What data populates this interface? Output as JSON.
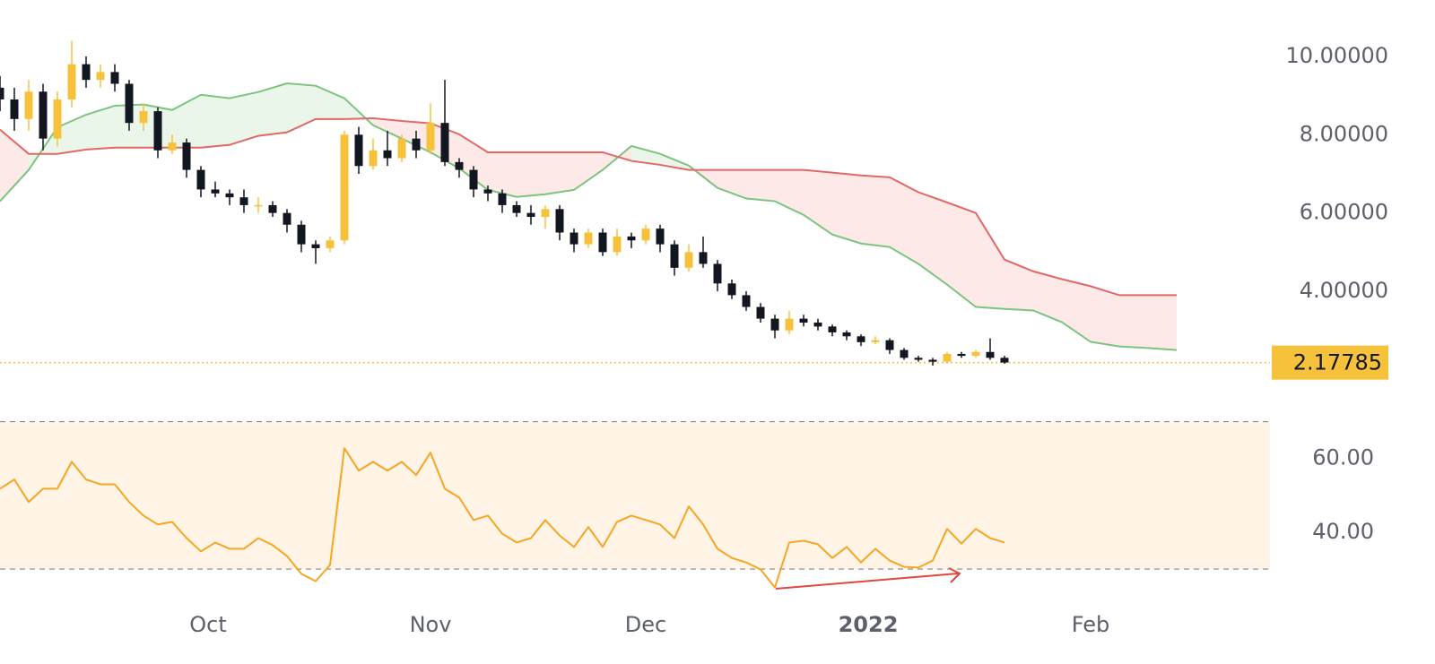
{
  "chart_data": [
    {
      "type": "candlestick",
      "x": [
        0,
        2,
        4,
        6,
        8,
        10,
        12,
        14,
        16,
        18,
        20,
        22,
        24,
        26,
        28,
        30,
        32,
        34,
        36,
        38,
        40,
        42,
        44,
        46,
        48,
        50,
        52,
        54,
        56,
        58,
        60,
        62,
        64,
        66,
        68,
        70,
        72,
        74,
        76,
        78,
        80,
        82,
        84,
        86,
        88,
        90,
        92,
        94,
        96,
        98,
        100,
        102,
        104,
        106,
        108,
        110,
        112,
        114,
        116,
        118,
        120,
        122,
        124,
        126,
        128,
        130,
        132,
        134,
        136,
        138,
        140
      ],
      "open": [
        9.2,
        8.9,
        8.4,
        9.1,
        7.9,
        8.9,
        9.8,
        9.4,
        9.6,
        9.3,
        8.3,
        8.6,
        7.6,
        7.8,
        7.1,
        6.6,
        6.5,
        6.4,
        6.2,
        6.2,
        6.0,
        5.7,
        5.2,
        5.1,
        5.3,
        8.0,
        7.2,
        7.6,
        7.4,
        7.9,
        7.6,
        8.3,
        7.3,
        7.1,
        6.6,
        6.5,
        6.2,
        6.0,
        5.9,
        6.1,
        5.5,
        5.2,
        5.5,
        5.0,
        5.4,
        5.3,
        5.6,
        5.2,
        4.6,
        5.0,
        4.7,
        4.2,
        3.9,
        3.6,
        3.3,
        3.0,
        3.3,
        3.2,
        3.1,
        2.95,
        2.85,
        2.7,
        2.75,
        2.5,
        2.3,
        2.25,
        2.2,
        2.4,
        2.35,
        2.45,
        2.3
      ],
      "high": [
        9.5,
        9.2,
        9.4,
        9.3,
        9.1,
        10.4,
        10.0,
        9.8,
        9.8,
        9.4,
        8.8,
        8.7,
        8.0,
        7.9,
        7.2,
        6.8,
        6.6,
        6.6,
        6.4,
        6.3,
        6.1,
        5.8,
        5.3,
        5.4,
        8.1,
        8.2,
        7.9,
        8.1,
        8.0,
        8.1,
        8.8,
        9.4,
        7.4,
        7.2,
        6.7,
        6.6,
        6.3,
        6.2,
        6.2,
        6.2,
        5.6,
        5.6,
        5.6,
        5.6,
        5.5,
        5.7,
        5.7,
        5.3,
        5.2,
        5.4,
        4.8,
        4.3,
        4.0,
        3.7,
        3.4,
        3.5,
        3.4,
        3.3,
        3.15,
        3.0,
        2.9,
        2.85,
        2.8,
        2.55,
        2.35,
        2.3,
        2.45,
        2.45,
        2.5,
        2.8,
        2.35
      ],
      "low": [
        8.6,
        8.1,
        8.1,
        7.6,
        7.7,
        8.7,
        9.2,
        9.2,
        9.1,
        8.1,
        8.1,
        7.4,
        7.5,
        6.9,
        6.4,
        6.4,
        6.2,
        6.0,
        6.0,
        5.9,
        5.5,
        5.0,
        4.7,
        5.0,
        5.2,
        7.0,
        7.1,
        7.2,
        7.3,
        7.4,
        7.5,
        7.2,
        6.9,
        6.4,
        6.3,
        6.0,
        5.9,
        5.7,
        5.6,
        5.3,
        5.0,
        5.1,
        4.9,
        4.9,
        5.1,
        5.2,
        5.0,
        4.4,
        4.5,
        4.6,
        4.0,
        3.8,
        3.5,
        3.2,
        2.8,
        2.9,
        3.1,
        3.0,
        2.85,
        2.75,
        2.6,
        2.65,
        2.4,
        2.25,
        2.2,
        2.1,
        2.15,
        2.3,
        2.3,
        2.25,
        2.15
      ],
      "close": [
        8.9,
        8.4,
        9.1,
        7.9,
        8.9,
        9.8,
        9.4,
        9.6,
        9.3,
        8.3,
        8.6,
        7.6,
        7.8,
        7.1,
        6.6,
        6.5,
        6.4,
        6.2,
        6.2,
        6.0,
        5.7,
        5.2,
        5.1,
        5.3,
        8.0,
        7.2,
        7.6,
        7.4,
        7.9,
        7.6,
        8.3,
        7.3,
        7.1,
        6.6,
        6.5,
        6.2,
        6.0,
        5.9,
        6.1,
        5.5,
        5.2,
        5.5,
        5.0,
        5.4,
        5.3,
        5.6,
        5.2,
        4.6,
        5.0,
        4.7,
        4.2,
        3.9,
        3.6,
        3.3,
        3.0,
        3.3,
        3.2,
        3.1,
        2.95,
        2.85,
        2.7,
        2.75,
        2.5,
        2.3,
        2.25,
        2.2,
        2.4,
        2.35,
        2.45,
        2.3,
        2.18
      ],
      "up_color": "#f7c23b",
      "down_color": "#131722",
      "cloud_x": [
        0,
        4,
        8,
        12,
        16,
        20,
        24,
        28,
        32,
        36,
        40,
        44,
        48,
        52,
        56,
        60,
        64,
        68,
        72,
        76,
        80,
        84,
        88,
        92,
        96,
        100,
        104,
        108,
        112,
        116,
        120,
        124,
        128,
        132,
        136,
        140,
        144,
        148,
        152,
        156,
        160,
        164
      ],
      "span_a": {
        "color": "#7cc47f",
        "values": [
          6.3,
          7.1,
          8.19,
          8.51,
          8.74,
          8.77,
          8.63,
          9.02,
          8.93,
          9.09,
          9.31,
          9.25,
          8.93,
          8.24,
          7.9,
          7.55,
          7.14,
          6.59,
          6.41,
          6.48,
          6.59,
          7.1,
          7.71,
          7.51,
          7.21,
          6.64,
          6.37,
          6.3,
          5.95,
          5.45,
          5.22,
          5.13,
          4.7,
          4.17,
          3.6,
          3.55,
          3.51,
          3.21,
          2.71,
          2.59,
          2.55,
          2.5
        ]
      },
      "span_b": {
        "color": "#e26767",
        "values": [
          8.13,
          7.51,
          7.51,
          7.62,
          7.67,
          7.67,
          7.67,
          7.67,
          7.74,
          7.97,
          8.06,
          8.4,
          8.4,
          8.42,
          8.35,
          8.29,
          8.01,
          7.55,
          7.55,
          7.55,
          7.55,
          7.55,
          7.33,
          7.23,
          7.1,
          7.1,
          7.1,
          7.1,
          7.1,
          7.03,
          6.96,
          6.91,
          6.53,
          6.27,
          6.0,
          4.81,
          4.51,
          4.31,
          4.13,
          3.9,
          3.9,
          3.9
        ]
      },
      "last_price": 2.17785,
      "last_price_color": "#f7c23b",
      "xlim": [
        0,
        177
      ],
      "ylim": [
        1.14,
        11.44
      ],
      "yticks": [
        {
          "value": 10,
          "label": "10.00000"
        },
        {
          "value": 8,
          "label": "8.00000"
        },
        {
          "value": 6,
          "label": "6.00000"
        },
        {
          "value": 4,
          "label": "4.00000"
        }
      ]
    },
    {
      "type": "line",
      "x": [
        0,
        2,
        4,
        6,
        8,
        10,
        12,
        14,
        16,
        18,
        20,
        22,
        24,
        26,
        28,
        30,
        32,
        34,
        36,
        38,
        40,
        42,
        44,
        46,
        48,
        50,
        52,
        54,
        56,
        58,
        60,
        62,
        64,
        66,
        68,
        70,
        72,
        74,
        76,
        78,
        80,
        82,
        84,
        86,
        88,
        90,
        92,
        94,
        96,
        98,
        100,
        102,
        104,
        106,
        108,
        110,
        112,
        114,
        116,
        118,
        120,
        122,
        124,
        126,
        128,
        130,
        132,
        134,
        136,
        138,
        140
      ],
      "values": [
        51.8,
        54.3,
        48.2,
        51.8,
        51.8,
        59.1,
        54.3,
        53.0,
        53.0,
        48.2,
        44.5,
        42.1,
        42.8,
        38.4,
        34.8,
        37.2,
        35.5,
        35.5,
        38.4,
        36.5,
        33.5,
        28.7,
        26.7,
        31.1,
        62.8,
        56.7,
        59.1,
        56.7,
        59.1,
        55.5,
        61.6,
        51.8,
        49.4,
        43.3,
        44.5,
        39.6,
        37.2,
        38.4,
        43.3,
        39.1,
        36.0,
        41.4,
        36.0,
        42.8,
        44.5,
        43.3,
        42.1,
        38.4,
        47.0,
        42.1,
        35.5,
        33.0,
        31.8,
        29.9,
        25.0,
        37.2,
        37.7,
        36.7,
        33.0,
        36.0,
        31.8,
        35.5,
        32.3,
        30.6,
        30.4,
        32.3,
        40.9,
        36.9,
        40.9,
        38.4,
        37.2
      ],
      "color": "#f5a623",
      "band": [
        30,
        70
      ],
      "band_color": "#fff4e6",
      "xlim": [
        0,
        177
      ],
      "ylim": [
        21.5,
        75
      ],
      "yticks": [
        {
          "value": 60,
          "label": "60.00"
        },
        {
          "value": 40,
          "label": "40.00"
        }
      ],
      "xticks": [
        {
          "value": 29,
          "label": "Oct"
        },
        {
          "value": 60,
          "label": "Nov"
        },
        {
          "value": 90,
          "label": "Dec"
        },
        {
          "value": 121,
          "label": "2022",
          "bold": true
        },
        {
          "value": 152,
          "label": "Feb"
        }
      ]
    }
  ]
}
